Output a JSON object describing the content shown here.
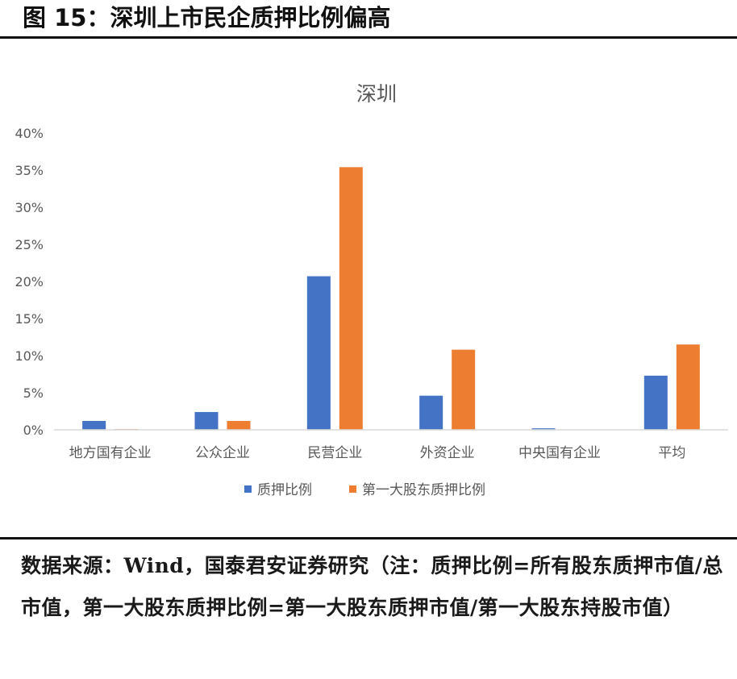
{
  "figure": {
    "title": "图 15：深圳上市民企质押比例偏高",
    "source_note": "数据来源：Wind，国泰君安证券研究（注：质押比例=所有股东质押市值/总市值，第一大股东质押比例=第一大股东质押市值/第一大股东持股市值）"
  },
  "colors": {
    "series1": "#4472C4",
    "series2": "#ED7D31",
    "axis": "#D9D9D9",
    "text": "#595959"
  },
  "chart_data": {
    "type": "bar",
    "title": "深圳",
    "categories": [
      "地方国有企业",
      "公众企业",
      "民营企业",
      "外资企业",
      "中央国有企业",
      "平均"
    ],
    "series": [
      {
        "name": "质押比例",
        "values": [
          1.2,
          2.4,
          20.7,
          4.6,
          0.2,
          7.3
        ]
      },
      {
        "name": "第一大股东质押比例",
        "values": [
          0.1,
          1.2,
          35.4,
          10.8,
          0.0,
          11.5
        ]
      }
    ],
    "ylim": [
      0,
      40
    ],
    "yticks": [
      "0%",
      "5%",
      "10%",
      "15%",
      "20%",
      "25%",
      "30%",
      "35%",
      "40%"
    ],
    "ytick_values": [
      0,
      5,
      10,
      15,
      20,
      25,
      30,
      35,
      40
    ],
    "grid": false,
    "legend_position": "bottom"
  }
}
